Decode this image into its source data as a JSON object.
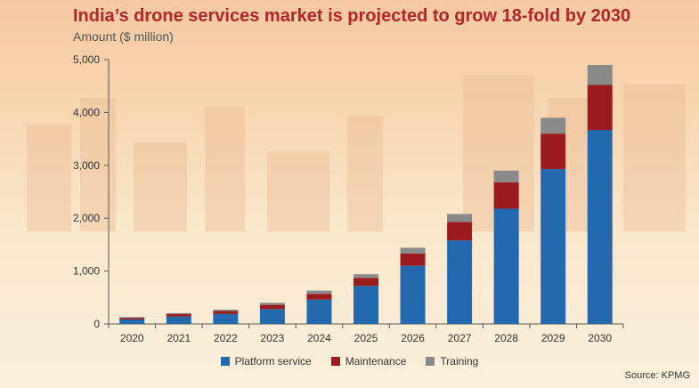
{
  "title": "India’s drone services market is projected to grow 18-fold by 2030",
  "subtitle": "Amount ($ million)",
  "source": "Source: KPMG",
  "colors": {
    "platform": "#2369ae",
    "maintenance": "#9b1b1e",
    "training": "#8a8a8a",
    "title": "#b0262a"
  },
  "chart_data": {
    "type": "bar",
    "stacked": true,
    "categories": [
      "2020",
      "2021",
      "2022",
      "2023",
      "2024",
      "2025",
      "2026",
      "2027",
      "2028",
      "2029",
      "2030"
    ],
    "series": [
      {
        "name": "Platform service",
        "values": [
          85,
          140,
          190,
          280,
          460,
          720,
          1100,
          1580,
          2180,
          2930,
          3670
        ]
      },
      {
        "name": "Maintenance",
        "values": [
          30,
          45,
          55,
          80,
          110,
          150,
          230,
          350,
          500,
          670,
          850
        ]
      },
      {
        "name": "Training",
        "values": [
          15,
          20,
          25,
          40,
          60,
          70,
          110,
          150,
          220,
          300,
          380
        ]
      }
    ],
    "ylim": [
      0,
      5000
    ],
    "yticks": [
      0,
      1000,
      2000,
      3000,
      4000,
      5000
    ],
    "ytick_labels": [
      "0",
      "1,000",
      "2,000",
      "3,000",
      "4,000",
      "5,000"
    ],
    "ylabel": "Amount ($ million)",
    "legend": "bottom-center",
    "grid": false
  }
}
